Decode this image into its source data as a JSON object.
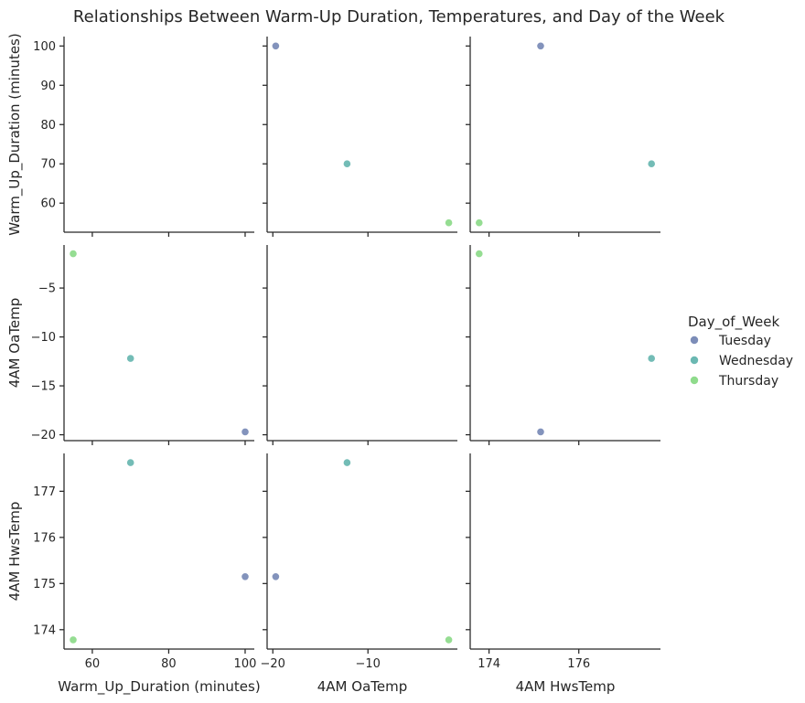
{
  "chart_data": {
    "type": "scatter",
    "title": "Relationships Between Warm-Up Duration, Temperatures, and Day of the Week",
    "variables": [
      "Warm_Up_Duration (minutes)",
      "4AM OaTemp",
      "4AM HwsTemp"
    ],
    "legend": {
      "title": "Day_of_Week",
      "placement": "right",
      "entries": [
        {
          "name": "Tuesday",
          "color": "#7c8db8"
        },
        {
          "name": "Wednesday",
          "color": "#6bb8b2"
        },
        {
          "name": "Thursday",
          "color": "#8fdb8c"
        }
      ]
    },
    "records": [
      {
        "day": "Tuesday",
        "Warm_Up_Duration (minutes)": 100,
        "4AM OaTemp": -19.7,
        "4AM HwsTemp": 175.15
      },
      {
        "day": "Wednesday",
        "Warm_Up_Duration (minutes)": 70,
        "4AM OaTemp": -12.2,
        "4AM HwsTemp": 177.62
      },
      {
        "day": "Thursday",
        "Warm_Up_Duration (minutes)": 55,
        "4AM OaTemp": -1.5,
        "4AM HwsTemp": 173.78
      }
    ],
    "axes": [
      {
        "name": "Warm_Up_Duration (minutes)",
        "range": [
          52.6,
          102.4
        ],
        "ticks": [
          60,
          70,
          80,
          90,
          100
        ],
        "tick_labels": [
          "60",
          "70",
          "80",
          "90",
          "100"
        ],
        "x_ticks": [
          60,
          80,
          100
        ],
        "x_tick_labels": [
          "60",
          "80",
          "100"
        ]
      },
      {
        "name": "4AM OaTemp",
        "range": [
          -20.6,
          -0.6
        ],
        "ticks": [
          -20,
          -15,
          -10,
          -5
        ],
        "tick_labels": [
          "−20",
          "−15",
          "−10",
          "−5"
        ],
        "x_ticks": [
          -20,
          -10
        ],
        "x_tick_labels": [
          "−20",
          "−10"
        ]
      },
      {
        "name": "4AM HwsTemp",
        "range": [
          173.58,
          177.82
        ],
        "ticks": [
          174,
          175,
          176,
          177
        ],
        "tick_labels": [
          "174",
          "175",
          "176",
          "177"
        ],
        "x_ticks": [
          174,
          176
        ],
        "x_tick_labels": [
          "174",
          "176"
        ]
      }
    ],
    "diagonal_panels_empty": true,
    "grid": false
  }
}
